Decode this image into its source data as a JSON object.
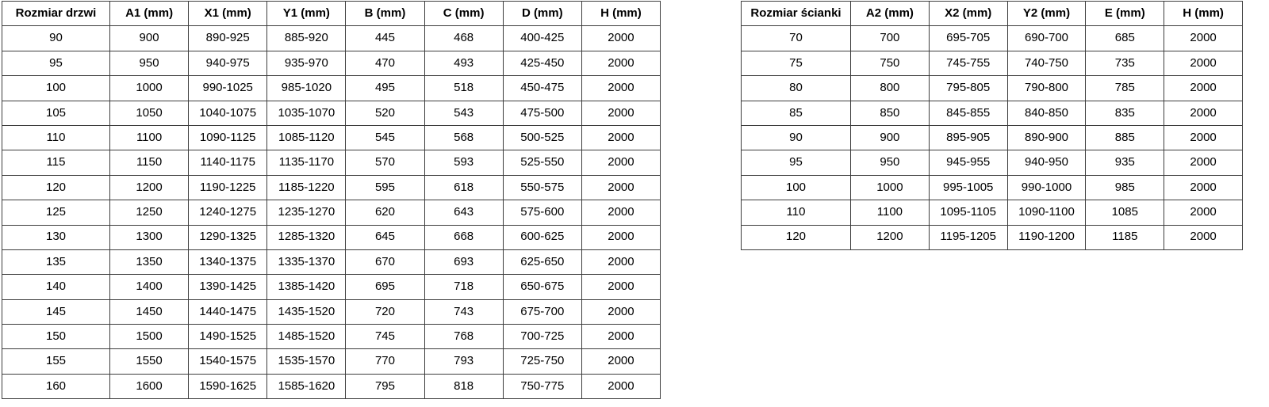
{
  "colors": {
    "background": "#ffffff",
    "border": "#3d3d3d",
    "text": "#000000"
  },
  "doors_table": {
    "headers": [
      "Rozmiar drzwi",
      "A1 (mm)",
      "X1 (mm)",
      "Y1 (mm)",
      "B (mm)",
      "C (mm)",
      "D (mm)",
      "H (mm)"
    ],
    "rows": [
      [
        "90",
        "900",
        "890-925",
        "885-920",
        "445",
        "468",
        "400-425",
        "2000"
      ],
      [
        "95",
        "950",
        "940-975",
        "935-970",
        "470",
        "493",
        "425-450",
        "2000"
      ],
      [
        "100",
        "1000",
        "990-1025",
        "985-1020",
        "495",
        "518",
        "450-475",
        "2000"
      ],
      [
        "105",
        "1050",
        "1040-1075",
        "1035-1070",
        "520",
        "543",
        "475-500",
        "2000"
      ],
      [
        "110",
        "1100",
        "1090-1125",
        "1085-1120",
        "545",
        "568",
        "500-525",
        "2000"
      ],
      [
        "115",
        "1150",
        "1140-1175",
        "1135-1170",
        "570",
        "593",
        "525-550",
        "2000"
      ],
      [
        "120",
        "1200",
        "1190-1225",
        "1185-1220",
        "595",
        "618",
        "550-575",
        "2000"
      ],
      [
        "125",
        "1250",
        "1240-1275",
        "1235-1270",
        "620",
        "643",
        "575-600",
        "2000"
      ],
      [
        "130",
        "1300",
        "1290-1325",
        "1285-1320",
        "645",
        "668",
        "600-625",
        "2000"
      ],
      [
        "135",
        "1350",
        "1340-1375",
        "1335-1370",
        "670",
        "693",
        "625-650",
        "2000"
      ],
      [
        "140",
        "1400",
        "1390-1425",
        "1385-1420",
        "695",
        "718",
        "650-675",
        "2000"
      ],
      [
        "145",
        "1450",
        "1440-1475",
        "1435-1520",
        "720",
        "743",
        "675-700",
        "2000"
      ],
      [
        "150",
        "1500",
        "1490-1525",
        "1485-1520",
        "745",
        "768",
        "700-725",
        "2000"
      ],
      [
        "155",
        "1550",
        "1540-1575",
        "1535-1570",
        "770",
        "793",
        "725-750",
        "2000"
      ],
      [
        "160",
        "1600",
        "1590-1625",
        "1585-1620",
        "795",
        "818",
        "750-775",
        "2000"
      ]
    ]
  },
  "walls_table": {
    "headers": [
      "Rozmiar ścianki",
      "A2 (mm)",
      "X2 (mm)",
      "Y2 (mm)",
      "E (mm)",
      "H (mm)"
    ],
    "rows": [
      [
        "70",
        "700",
        "695-705",
        "690-700",
        "685",
        "2000"
      ],
      [
        "75",
        "750",
        "745-755",
        "740-750",
        "735",
        "2000"
      ],
      [
        "80",
        "800",
        "795-805",
        "790-800",
        "785",
        "2000"
      ],
      [
        "85",
        "850",
        "845-855",
        "840-850",
        "835",
        "2000"
      ],
      [
        "90",
        "900",
        "895-905",
        "890-900",
        "885",
        "2000"
      ],
      [
        "95",
        "950",
        "945-955",
        "940-950",
        "935",
        "2000"
      ],
      [
        "100",
        "1000",
        "995-1005",
        "990-1000",
        "985",
        "2000"
      ],
      [
        "110",
        "1100",
        "1095-1105",
        "1090-1100",
        "1085",
        "2000"
      ],
      [
        "120",
        "1200",
        "1195-1205",
        "1190-1200",
        "1185",
        "2000"
      ]
    ]
  }
}
